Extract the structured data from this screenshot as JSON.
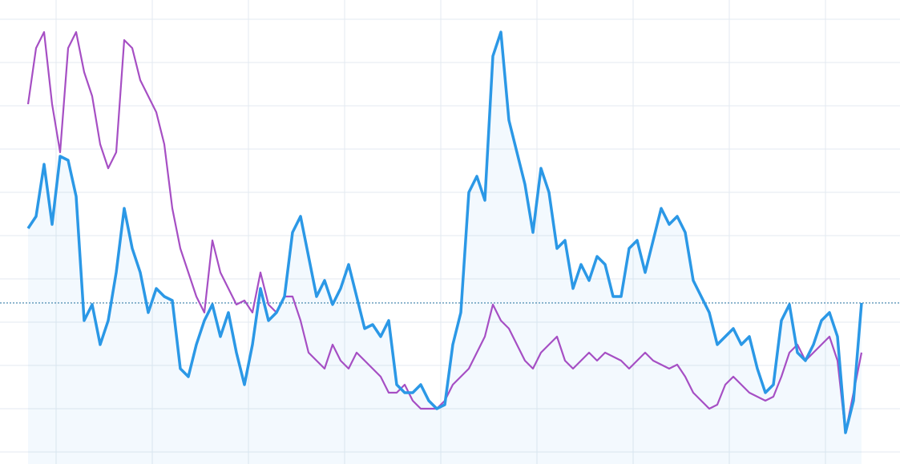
{
  "chart_data": {
    "type": "line",
    "x": [
      0,
      1,
      2,
      3,
      4,
      5,
      6,
      7,
      8,
      9,
      10,
      11,
      12,
      13,
      14,
      15,
      16,
      17,
      18,
      19,
      20,
      21,
      22,
      23,
      24,
      25,
      26,
      27,
      28,
      29,
      30,
      31,
      32,
      33,
      34,
      35,
      36,
      37,
      38,
      39,
      40,
      41,
      42,
      43,
      44,
      45,
      46,
      47,
      48,
      49,
      50,
      51,
      52,
      53,
      54,
      55,
      56,
      57,
      58,
      59,
      60,
      61,
      62,
      63,
      64,
      65,
      66,
      67,
      68,
      69,
      70,
      71,
      72,
      73,
      74,
      75,
      76,
      77,
      78,
      79,
      80,
      81,
      82,
      83,
      84,
      85,
      86,
      87,
      88,
      89,
      90,
      91,
      92,
      93,
      94,
      95,
      96,
      97,
      98,
      99,
      100,
      101,
      102,
      103,
      104
    ],
    "series": [
      {
        "color": "#2b98e6",
        "area": true,
        "values": [
          294,
          309,
          374,
          299,
          384,
          379,
          334,
          179,
          199,
          149,
          179,
          239,
          319,
          269,
          239,
          189,
          219,
          209,
          204,
          119,
          109,
          149,
          179,
          199,
          159,
          189,
          139,
          99,
          149,
          219,
          179,
          189,
          209,
          289,
          309,
          259,
          209,
          229,
          199,
          219,
          249,
          209,
          169,
          174,
          159,
          179,
          99,
          89,
          89,
          99,
          79,
          69,
          74,
          149,
          189,
          339,
          359,
          329,
          509,
          539,
          429,
          389,
          349,
          289,
          369,
          339,
          269,
          279,
          219,
          249,
          229,
          259,
          249,
          209,
          209,
          269,
          279,
          239,
          279,
          319,
          299,
          309,
          289,
          229,
          209,
          189,
          149,
          159,
          169,
          149,
          159,
          119,
          89,
          99,
          179,
          199,
          139,
          129,
          149,
          179,
          189,
          159,
          39,
          79,
          201
        ]
      },
      {
        "color": "#a64fc4",
        "values": [
          449,
          519,
          539,
          449,
          389,
          519,
          539,
          489,
          459,
          399,
          369,
          389,
          529,
          519,
          479,
          459,
          439,
          399,
          319,
          269,
          239,
          209,
          189,
          279,
          239,
          219,
          199,
          204,
          189,
          239,
          199,
          189,
          209,
          209,
          179,
          139,
          129,
          119,
          149,
          129,
          119,
          139,
          129,
          119,
          109,
          89,
          89,
          99,
          79,
          69,
          69,
          69,
          79,
          99,
          109,
          119,
          139,
          159,
          199,
          179,
          169,
          149,
          129,
          119,
          139,
          149,
          159,
          129,
          119,
          129,
          139,
          129,
          139,
          134,
          129,
          119,
          129,
          139,
          129,
          124,
          119,
          124,
          109,
          89,
          79,
          69,
          74,
          99,
          109,
          99,
          89,
          84,
          79,
          84,
          109,
          139,
          149,
          129,
          139,
          149,
          159,
          129,
          39,
          89,
          139
        ]
      }
    ],
    "xlim": [
      -3.5,
      108.8
    ],
    "ylim": [
      0,
      579
    ],
    "xticks": [
      3.5,
      15.5,
      27.5,
      39.5,
      51.5,
      63.5,
      75.5,
      87.5,
      99.5
    ],
    "yticks": [
      15,
      69,
      123,
      177,
      231,
      285,
      339,
      393,
      447,
      501,
      555
    ],
    "ref_line": 201,
    "grid": true
  }
}
